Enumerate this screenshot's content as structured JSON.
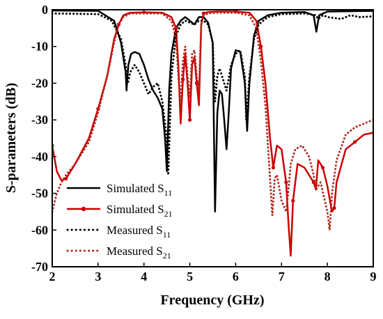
{
  "chart_data": {
    "type": "line",
    "xlabel": "Frequency (GHz)",
    "ylabel": "S-parameters (dB)",
    "xlim": [
      2,
      9
    ],
    "ylim": [
      -70,
      0
    ],
    "xticks": [
      "2",
      "3",
      "4",
      "5",
      "6",
      "7",
      "8",
      "9"
    ],
    "yticks": [
      "0",
      "-10",
      "-20",
      "-30",
      "-40",
      "-50",
      "-60",
      "-70"
    ],
    "legend_position": "lower-left",
    "series": [
      {
        "name": "Simulated S",
        "sub": "11",
        "color": "#000000",
        "style": "solid",
        "x": [
          2.0,
          3.0,
          3.35,
          3.5,
          3.6,
          3.62,
          3.66,
          3.72,
          3.8,
          3.9,
          4.0,
          4.1,
          4.2,
          4.3,
          4.4,
          4.46,
          4.5,
          4.55,
          4.6,
          4.7,
          4.8,
          4.9,
          5.0,
          5.1,
          5.2,
          5.3,
          5.4,
          5.5,
          5.55,
          5.6,
          5.65,
          5.7,
          5.75,
          5.8,
          5.85,
          5.9,
          6.0,
          6.1,
          6.2,
          6.25,
          6.3,
          6.4,
          6.5,
          6.7,
          7.0,
          7.5,
          7.7,
          7.76,
          7.82,
          8.0,
          8.5,
          9.0
        ],
        "y": [
          -0.2,
          -0.3,
          -3,
          -9,
          -17,
          -22,
          -15,
          -12,
          -11.5,
          -12,
          -15,
          -19,
          -22,
          -24,
          -27,
          -35,
          -44,
          -22,
          -12,
          -5,
          -3,
          -2,
          -3,
          -4,
          -2,
          -2,
          -3.5,
          -9,
          -55,
          -28,
          -22,
          -23,
          -30,
          -38,
          -28,
          -16,
          -11,
          -11.5,
          -20,
          -33,
          -20,
          -7,
          -3,
          -1.5,
          -0.8,
          -0.6,
          -1.5,
          -6,
          -1.5,
          -0.5,
          -0.4,
          -0.3
        ]
      },
      {
        "name": "Simulated S",
        "sub": "21",
        "color": "#cc0000",
        "style": "solid-marker",
        "x": [
          2.0,
          2.1,
          2.2,
          2.3,
          2.5,
          2.8,
          3.0,
          3.2,
          3.35,
          3.45,
          3.55,
          3.7,
          4.0,
          4.4,
          4.6,
          4.7,
          4.75,
          4.8,
          4.85,
          4.9,
          4.95,
          5.0,
          5.05,
          5.1,
          5.15,
          5.2,
          5.25,
          5.3,
          5.4,
          5.6,
          6.0,
          6.3,
          6.45,
          6.55,
          6.65,
          6.75,
          6.82,
          6.9,
          7.0,
          7.1,
          7.15,
          7.2,
          7.25,
          7.35,
          7.5,
          7.7,
          7.75,
          7.8,
          7.9,
          8.0,
          8.1,
          8.15,
          8.2,
          8.4,
          8.6,
          8.8,
          9.0
        ],
        "y": [
          -37,
          -44,
          -46.5,
          -46,
          -42,
          -35,
          -27,
          -18,
          -8,
          -4,
          -1.5,
          -0.8,
          -0.7,
          -0.8,
          -2,
          -5,
          -15,
          -31,
          -19,
          -12,
          -20,
          -30,
          -15,
          -13,
          -20,
          -26,
          -4,
          -1,
          -0.6,
          -0.5,
          -0.5,
          -0.8,
          -3,
          -10,
          -20,
          -35,
          -43,
          -37,
          -38,
          -47,
          -58,
          -67,
          -52,
          -42,
          -43,
          -47,
          -49,
          -41,
          -43,
          -48,
          -55,
          -54,
          -47,
          -38,
          -36,
          -34,
          -33.5
        ]
      },
      {
        "name": "Measured S",
        "sub": "11",
        "color": "#000000",
        "style": "dotted",
        "x": [
          2.0,
          3.0,
          3.3,
          3.5,
          3.6,
          3.65,
          3.7,
          3.8,
          3.9,
          4.0,
          4.1,
          4.2,
          4.3,
          4.4,
          4.5,
          4.53,
          4.6,
          4.7,
          4.8,
          4.9,
          5.0,
          5.1,
          5.2,
          5.3,
          5.4,
          5.5,
          5.55,
          5.6,
          5.65,
          5.7,
          5.75,
          5.8,
          5.9,
          6.0,
          6.1,
          6.2,
          6.23,
          6.3,
          6.4,
          6.5,
          6.7,
          7.0,
          7.5,
          7.75,
          7.8,
          7.9,
          8.0,
          8.3,
          8.5,
          8.7,
          9.0
        ],
        "y": [
          -1,
          -1.2,
          -3,
          -8,
          -15,
          -20,
          -17,
          -15,
          -17,
          -20,
          -23,
          -21,
          -20,
          -25,
          -35,
          -45,
          -18,
          -7,
          -4,
          -3,
          -3.5,
          -4,
          -3,
          -3,
          -4,
          -9,
          -25,
          -18,
          -16,
          -18,
          -20,
          -22,
          -15,
          -12,
          -11,
          -18,
          -30,
          -18,
          -8,
          -4,
          -2,
          -1.2,
          -1,
          -1.5,
          -2.5,
          -1.5,
          -2,
          -2.5,
          -1.5,
          -2,
          -1.8
        ]
      },
      {
        "name": "Measured S",
        "sub": "21",
        "color": "#b3261e",
        "style": "dotted",
        "x": [
          2.0,
          2.1,
          2.2,
          2.3,
          2.5,
          2.8,
          3.0,
          3.2,
          3.35,
          3.45,
          3.55,
          3.7,
          4.0,
          4.4,
          4.6,
          4.7,
          4.75,
          4.8,
          4.85,
          4.9,
          4.95,
          5.0,
          5.05,
          5.1,
          5.15,
          5.2,
          5.25,
          5.3,
          5.4,
          5.6,
          6.0,
          6.3,
          6.45,
          6.55,
          6.65,
          6.72,
          6.8,
          6.85,
          6.9,
          7.0,
          7.1,
          7.15,
          7.2,
          7.3,
          7.45,
          7.6,
          7.7,
          7.75,
          7.85,
          8.0,
          8.05,
          8.1,
          8.2,
          8.4,
          8.6,
          8.8,
          9.0
        ],
        "y": [
          -55,
          -50,
          -47,
          -45,
          -42,
          -36,
          -28,
          -18,
          -9,
          -4,
          -2,
          -1,
          -1,
          -1,
          -3,
          -8,
          -18,
          -25,
          -14,
          -10,
          -18,
          -24,
          -12,
          -11,
          -18,
          -22,
          -4,
          -1.5,
          -1,
          -0.8,
          -0.8,
          -1.5,
          -5,
          -14,
          -26,
          -40,
          -56,
          -46,
          -45,
          -52,
          -55,
          -49,
          -42,
          -38,
          -37,
          -40,
          -45,
          -49,
          -47,
          -55,
          -60,
          -50,
          -41,
          -34,
          -32,
          -31,
          -30
        ]
      }
    ]
  }
}
